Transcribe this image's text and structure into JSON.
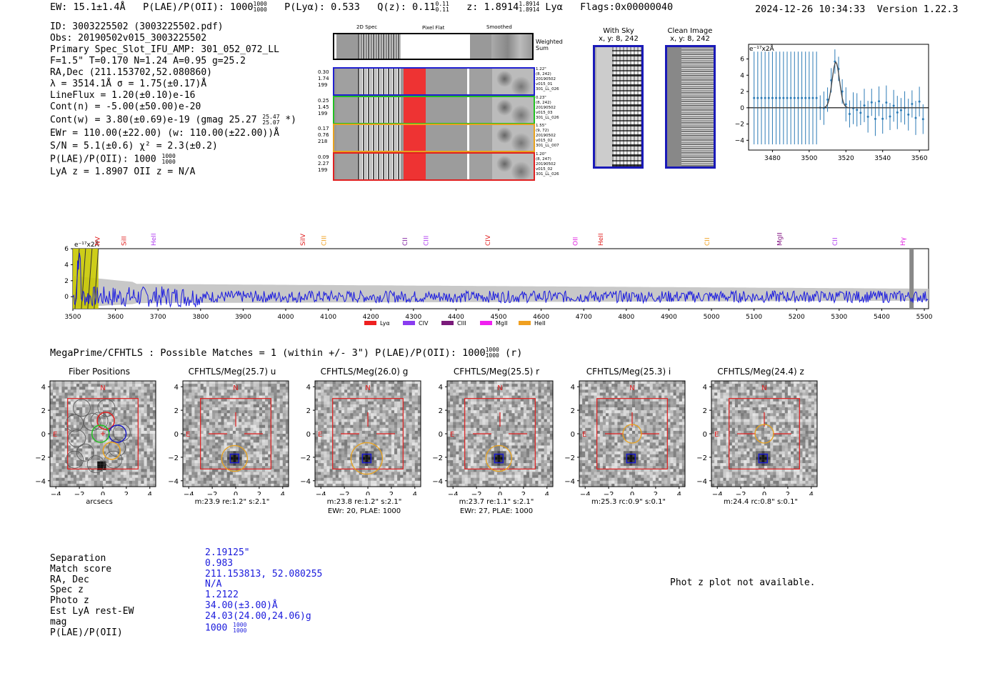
{
  "header": {
    "ew": "EW: 15.1±1.4Å",
    "plae_label": "P(LAE)/P(OII): 1000",
    "plae_hi": "1000",
    "plae_lo": "1000",
    "plya": "P(Lyα): 0.533",
    "qz_label": "Q(z): 0.11",
    "qz_hi": "0.11",
    "qz_lo": "0.11",
    "z_label": "z: 1.8914",
    "z_hi": "1.8914",
    "z_lo": "1.8914",
    "z_line": "Lyα",
    "flags": "Flags:0x00000040",
    "timestamp": "2024-12-26 10:34:33",
    "version": "Version 1.22.3"
  },
  "info": {
    "id": "ID: 3003225502 (3003225502.pdf)",
    "obs": "Obs: 20190502v015_3003225502",
    "primary": "Primary Spec_Slot_IFU_AMP: 301_052_072_LL",
    "fwhm": "F=1.5\"  T=0.170  N=1.24  A=0.95  g=25.2",
    "radec": "RA,Dec (211.153702,52.080860)",
    "lambda": "λ = 3514.1Å   σ = 1.75(±0.17)Å",
    "lineflux": "LineFlux = 1.20(±0.10)e-16",
    "contn": "Cont(n) = -5.00(±50.00)e-20",
    "contw": "Cont(w) = 3.80(±0.69)e-19 (gmag 25.27",
    "contw_hi": "25.47",
    "contw_lo": "25.07",
    "contw_end": "*)",
    "ewr": "EWr = 110.00(±22.00) (w: 110.00(±22.00))Å",
    "sn": "S/N = 5.1(±0.6)  χ² = 2.3(±0.2)",
    "plae": "P(LAE)/P(OII): 1000",
    "plae_hi": "1000",
    "plae_lo": "1000",
    "lyaz": "LyA z = 1.8907  OII z = N/A"
  },
  "spec2d": {
    "col_labels": [
      "2D Spec",
      "Pixel Flat",
      "Smoothed"
    ],
    "weighted_sum": "Weighted Sum",
    "rows": [
      {
        "left": [
          "0.30",
          "1.74",
          "199"
        ],
        "right": [
          "1.22\"",
          "(8, 242)",
          "20190502",
          "v015_01",
          "301_LL_026"
        ],
        "color": "#1f1fd0"
      },
      {
        "left": [
          "0.25",
          "1.45",
          "199"
        ],
        "right": [
          "0.23\"",
          "(8, 242)",
          "20190502",
          "v015_03",
          "301_LL_026"
        ],
        "color": "#22c022"
      },
      {
        "left": [
          "0.17",
          "0.76",
          "218"
        ],
        "right": [
          "1.55\"",
          "(9, 72)",
          "20190502",
          "v015_02",
          "301_LL_007"
        ],
        "color": "#e8a21e"
      },
      {
        "left": [
          "0.09",
          "2.27",
          "199"
        ],
        "right": [
          "1.20\"",
          "(8, 247)",
          "20190502",
          "v015_02",
          "301_LL_026"
        ],
        "color": "#e02020"
      }
    ]
  },
  "withsky": {
    "title": "With Sky",
    "coords": "x, y: 8, 242"
  },
  "clean": {
    "title": "Clean Image",
    "coords": "x, y: 8, 242"
  },
  "zoom_plot": {
    "ylabel": "e⁻¹⁷x2Å",
    "xticks": [
      "3480",
      "3500",
      "3520",
      "3540",
      "3560"
    ],
    "yticks": [
      "6",
      "4",
      "2",
      "0",
      "−2",
      "−4"
    ]
  },
  "fullspec": {
    "ylabel": "e⁻¹⁷x2Å",
    "yticks": [
      "6",
      "4",
      "2",
      "0"
    ],
    "xticks": [
      "3500",
      "3600",
      "3700",
      "3800",
      "3900",
      "4000",
      "4100",
      "4200",
      "4300",
      "4400",
      "4500",
      "4600",
      "4700",
      "4800",
      "4900",
      "5000",
      "5100",
      "5200",
      "5300",
      "5400",
      "5500"
    ],
    "lines": [
      {
        "name": "NV",
        "color": "#e02020",
        "x": 3558
      },
      {
        "name": "SiII",
        "color": "#e02020",
        "x": 3620
      },
      {
        "name": "HeII",
        "color": "#b03cf0",
        "x": 3690
      },
      {
        "name": "SiIV",
        "color": "#e02020",
        "x": 4040
      },
      {
        "name": "CIII",
        "color": "#f0a020",
        "x": 4090
      },
      {
        "name": "CII",
        "color": "#8020a0",
        "x": 4280
      },
      {
        "name": "CIII",
        "color": "#b03cf0",
        "x": 4330
      },
      {
        "name": "CIV",
        "color": "#e02020",
        "x": 4475
      },
      {
        "name": "OII",
        "color": "#e020e0",
        "x": 4680
      },
      {
        "name": "HeII",
        "color": "#e02020",
        "x": 4740
      },
      {
        "name": "CII",
        "color": "#f0a020",
        "x": 4990
      },
      {
        "name": "MgII",
        "color": "#801080",
        "x": 5160
      },
      {
        "name": "CII",
        "color": "#b03cf0",
        "x": 5290
      },
      {
        "name": "Hγ",
        "color": "#e020e0",
        "x": 5450
      }
    ],
    "legend": [
      {
        "label": "Lyα",
        "color": "#ee2020"
      },
      {
        "label": "CIV",
        "color": "#8a3cf0"
      },
      {
        "label": "CIII",
        "color": "#7a1a7a"
      },
      {
        "label": "MgII",
        "color": "#f020f0"
      },
      {
        "label": "HeII",
        "color": "#f0a020"
      }
    ]
  },
  "matches": {
    "title": "MegaPrime/CFHTLS : Possible Matches = 1 (within +/- 3\")  P(LAE)/P(OII): 1000",
    "plae_hi": "1000",
    "plae_lo": "1000",
    "band": "(r)"
  },
  "cutouts": [
    {
      "title": "Fiber Positions",
      "foot1": "arcsecs",
      "foot2": ""
    },
    {
      "title": "CFHTLS/Meg(25.7) u",
      "foot1": "m:23.9  re:1.2\"  s:2.1\"",
      "foot2": ""
    },
    {
      "title": "CFHTLS/Meg(26.0) g",
      "foot1": "m:23.8  re:1.2\"  s:2.1\"",
      "foot2": "EWr: 20, PLAE: 1000"
    },
    {
      "title": "CFHTLS/Meg(25.5) r",
      "foot1": "m:23.7  re:1.1\"  s:2.1\"",
      "foot2": "EWr: 27, PLAE: 1000"
    },
    {
      "title": "CFHTLS/Meg(25.3) i",
      "foot1": "m:25.3 rc:0.9\"  s:0.1\"",
      "foot2": ""
    },
    {
      "title": "CFHTLS/Meg(24.4) z",
      "foot1": "m:24.4 rc:0.8\"  s:0.1\"",
      "foot2": ""
    }
  ],
  "cutout_axis": {
    "yticks": [
      "4",
      "2",
      "0",
      "−2",
      "−4"
    ],
    "xticks": [
      "−4",
      "−2",
      "0",
      "2",
      "4"
    ],
    "north": "N",
    "east": "E"
  },
  "table": {
    "labels": [
      "Separation",
      "Match score",
      "RA, Dec",
      "Spec z",
      "Photo z",
      "Est LyA rest-EW",
      "mag",
      "P(LAE)/P(OII)"
    ],
    "values": [
      "2.19125\"",
      "0.983",
      "211.153813, 52.080255",
      "N/A",
      "1.2122",
      "34.00(±3.00)Å",
      "24.03(24.00,24.06)g",
      "1000"
    ],
    "plae_hi": "1000",
    "plae_lo": "1000"
  },
  "photz_note": "Phot z plot not available."
}
